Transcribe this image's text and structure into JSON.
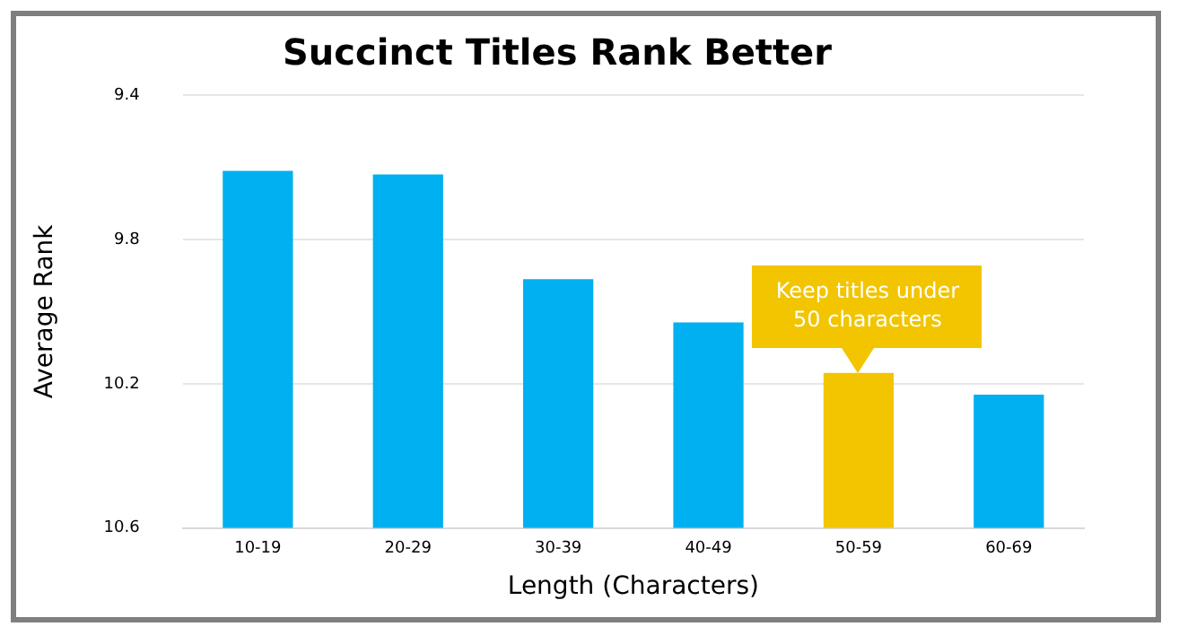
{
  "chart_data": {
    "type": "bar",
    "title": "Succinct Titles Rank Better",
    "xlabel": "Length (Characters)",
    "ylabel": "Average Rank",
    "categories": [
      "10-19",
      "20-29",
      "30-39",
      "40-49",
      "50-59",
      "60-69"
    ],
    "base": [
      10.6,
      10.6,
      10.6,
      10.6,
      10.6,
      10.6
    ],
    "values": [
      -0.99,
      -0.98,
      -0.69,
      -0.57,
      -0.43,
      -0.37
    ],
    "colors": [
      "#00b0f0",
      "#00b0f0",
      "#00b0f0",
      "#00b0f0",
      "#f2c500",
      "#00b0f0"
    ],
    "ylim": [
      10.6,
      9.4
    ],
    "yticks": [
      9.4,
      9.8,
      10.2,
      10.6
    ],
    "grid": "y",
    "legend": false,
    "annotations": [
      {
        "text": "Keep titles under 50 characters",
        "x": "50-59",
        "y": 10.17
      }
    ]
  }
}
